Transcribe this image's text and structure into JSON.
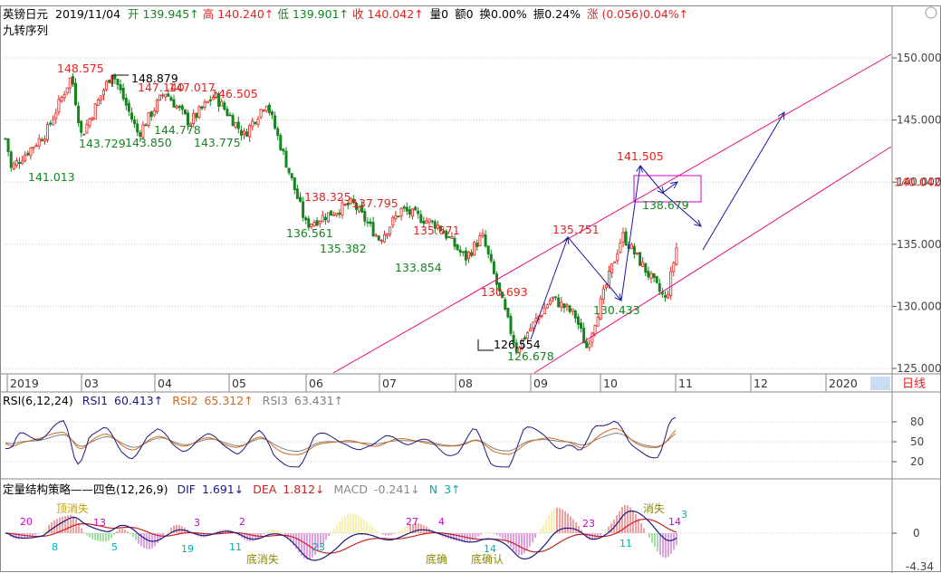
{
  "header": {
    "symbol": "英镑日元",
    "date": "2019/11/04",
    "open_label": "开",
    "open": "139.945↑",
    "high_label": "高",
    "high": "140.240↑",
    "low_label": "低",
    "low": "139.901↑",
    "close_label": "收",
    "close": "140.042↑",
    "volume": "量0",
    "amount": "额0",
    "turnover": "换0.00%",
    "amplitude": "振0.24%",
    "change_label": "涨",
    "change": "(0.056)0.04%↑",
    "indicator": "九转序列"
  },
  "colors": {
    "up": "#e4231f",
    "down": "#14851f",
    "purple": "#cc00cc",
    "magenta_line": "#e0107a",
    "blue": "#1a1aa0",
    "rsi1": "#1a1a80",
    "rsi2": "#d2691e",
    "rsi3": "#808080",
    "dif": "#1a1a80",
    "dea": "#cc2020",
    "grid": "#c8c8c8"
  },
  "chart_data": [
    {
      "type": "candlestick",
      "title": "英镑日元",
      "ylim": [
        124.5,
        152.5
      ],
      "y_ticks": [
        "150.000",
        "145.000",
        "140.000",
        "135.000",
        "130.000",
        "125.000"
      ],
      "last_price": "140.042",
      "x_ticks": [
        "2019",
        "03",
        "04",
        "05",
        "06",
        "07",
        "08",
        "09",
        "10",
        "11",
        "12",
        "2020"
      ],
      "period_label": "日线",
      "approx_close_path": [
        {
          "date": "2019-01",
          "value": 143.5
        },
        {
          "date": "2019-01-03",
          "value": 141.0
        },
        {
          "date": "2019-02",
          "value": 144.0
        },
        {
          "date": "2019-02-21",
          "value": 148.575
        },
        {
          "date": "2019-03",
          "value": 143.729
        },
        {
          "date": "2019-03-14",
          "value": 148.879
        },
        {
          "date": "2019-03-25",
          "value": 143.85
        },
        {
          "date": "2019-04-05",
          "value": 147.3
        },
        {
          "date": "2019-04-15",
          "value": 144.778
        },
        {
          "date": "2019-04-25",
          "value": 147.0
        },
        {
          "date": "2019-05-07",
          "value": 143.775
        },
        {
          "date": "2019-05-16",
          "value": 146.505
        },
        {
          "date": "2019-06",
          "value": 136.561
        },
        {
          "date": "2019-06-20",
          "value": 138.325
        },
        {
          "date": "2019-07-01",
          "value": 135.382
        },
        {
          "date": "2019-07-10",
          "value": 137.795
        },
        {
          "date": "2019-07-25",
          "value": 136.5
        },
        {
          "date": "2019-08-05",
          "value": 133.854
        },
        {
          "date": "2019-08-12",
          "value": 135.671
        },
        {
          "date": "2019-08-26",
          "value": 126.554
        },
        {
          "date": "2019-09-10",
          "value": 130.693
        },
        {
          "date": "2019-09-20",
          "value": 129.3
        },
        {
          "date": "2019-09-25",
          "value": 126.678
        },
        {
          "date": "2019-10-10",
          "value": 135.751
        },
        {
          "date": "2019-10-28",
          "value": 130.433
        },
        {
          "date": "2019-11-08",
          "value": 141.505
        },
        {
          "date": "2019-11-18",
          "value": 138.679
        },
        {
          "date": "2019-11-29",
          "value": 140.042
        }
      ],
      "annotations": {
        "highs": [
          {
            "label": "148.575",
            "value": 148.575
          },
          {
            "label": "148.879",
            "value": 148.879
          },
          {
            "label": "147.140",
            "value": 147.14
          },
          {
            "label": "147.017",
            "value": 147.017
          },
          {
            "label": "146.505",
            "value": 146.505
          },
          {
            "label": "138.325",
            "value": 138.325
          },
          {
            "label": "137.795",
            "value": 137.795
          },
          {
            "label": "135.671",
            "value": 135.671
          },
          {
            "label": "130.693",
            "value": 130.693
          },
          {
            "label": "135.751",
            "value": 135.751
          },
          {
            "label": "141.505",
            "value": 141.505
          }
        ],
        "lows": [
          {
            "label": "141.013",
            "value": 141.013
          },
          {
            "label": "143.729",
            "value": 143.729
          },
          {
            "label": "143.850",
            "value": 143.85
          },
          {
            "label": "144.778",
            "value": 144.778
          },
          {
            "label": "143.775",
            "value": 143.775
          },
          {
            "label": "136.561",
            "value": 136.561
          },
          {
            "label": "135.382",
            "value": 135.382
          },
          {
            "label": "133.854",
            "value": 133.854
          },
          {
            "label": "126.554",
            "value": 126.554
          },
          {
            "label": "126.678",
            "value": 126.678
          },
          {
            "label": "130.433",
            "value": 130.433
          },
          {
            "label": "138.679",
            "value": 138.679
          }
        ]
      }
    },
    {
      "type": "line",
      "title": "RSI(6,12,24)",
      "series": [
        {
          "name": "RSI1",
          "last_value": "60.413↑"
        },
        {
          "name": "RSI2",
          "last_value": "65.312↑"
        },
        {
          "name": "RSI3",
          "last_value": "63.431↑"
        }
      ],
      "y_ticks": [
        "80",
        "50",
        "20"
      ]
    },
    {
      "type": "line",
      "title": "定量结构策略——四色(12,26,9)",
      "series": [
        {
          "name": "DIF",
          "last_value": "1.691↓"
        },
        {
          "name": "DEA",
          "last_value": "1.812↓"
        },
        {
          "name": "MACD",
          "last_value": "-0.241↓"
        },
        {
          "name": "N",
          "last_value": "3↑"
        }
      ],
      "y_ticks": [
        "0",
        "-4.34"
      ],
      "annotations": [
        "顶消失",
        "底消失",
        "底确",
        "底确认",
        "消失"
      ],
      "counts": [
        "20",
        "13",
        "8",
        "5",
        "19",
        "3",
        "2",
        "11",
        "23",
        "27",
        "4",
        "14",
        "23",
        "11",
        "14",
        "3"
      ]
    }
  ]
}
